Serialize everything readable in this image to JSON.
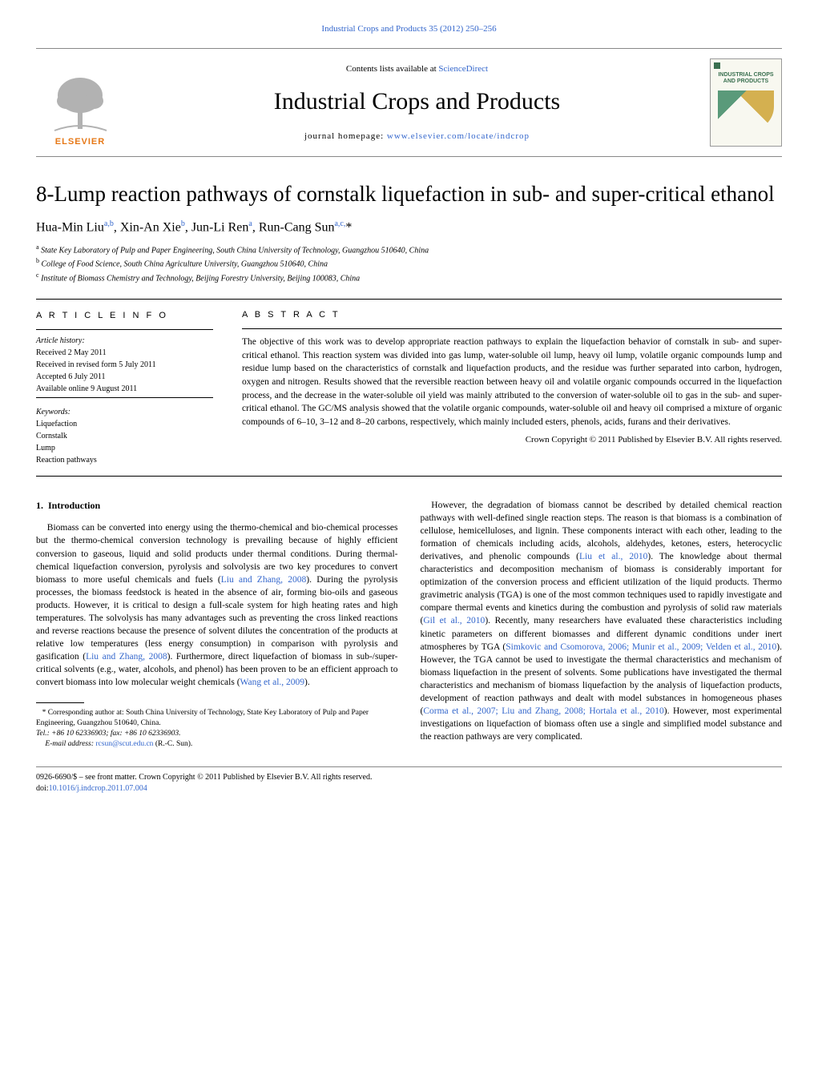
{
  "journal_ref": "Industrial Crops and Products 35 (2012) 250–256",
  "masthead": {
    "contents_text": "Contents lists available at ",
    "contents_link": "ScienceDirect",
    "journal_name": "Industrial Crops and Products",
    "homepage_label": "journal homepage: ",
    "homepage_url": "www.elsevier.com/locate/indcrop",
    "publisher": "ELSEVIER",
    "cover_title": "INDUSTRIAL CROPS AND PRODUCTS"
  },
  "article": {
    "title": "8-Lump reaction pathways of cornstalk liquefaction in sub- and super-critical ethanol",
    "authors_html": "Hua-Min Liu<sup>a,b</sup>, Xin-An Xie<sup>b</sup>, Jun-Li Ren<sup>a</sup>, Run-Cang Sun<sup>a,c,</sup>*",
    "affiliations": [
      {
        "tag": "a",
        "text": "State Key Laboratory of Pulp and Paper Engineering, South China University of Technology, Guangzhou 510640, China"
      },
      {
        "tag": "b",
        "text": "College of Food Science, South China Agriculture University, Guangzhou 510640, China"
      },
      {
        "tag": "c",
        "text": "Institute of Biomass Chemistry and Technology, Beijing Forestry University, Beijing 100083, China"
      }
    ]
  },
  "info": {
    "heading": "a r t i c l e   i n f o",
    "history_label": "Article history:",
    "history": [
      "Received 2 May 2011",
      "Received in revised form 5 July 2011",
      "Accepted 6 July 2011",
      "Available online 9 August 2011"
    ],
    "keywords_label": "Keywords:",
    "keywords": [
      "Liquefaction",
      "Cornstalk",
      "Lump",
      "Reaction pathways"
    ]
  },
  "abstract": {
    "heading": "a b s t r a c t",
    "text": "The objective of this work was to develop appropriate reaction pathways to explain the liquefaction behavior of cornstalk in sub- and super-critical ethanol. This reaction system was divided into gas lump, water-soluble oil lump, heavy oil lump, volatile organic compounds lump and residue lump based on the characteristics of cornstalk and liquefaction products, and the residue was further separated into carbon, hydrogen, oxygen and nitrogen. Results showed that the reversible reaction between heavy oil and volatile organic compounds occurred in the liquefaction process, and the decrease in the water-soluble oil yield was mainly attributed to the conversion of water-soluble oil to gas in the sub- and super-critical ethanol. The GC/MS analysis showed that the volatile organic compounds, water-soluble oil and heavy oil comprised a mixture of organic compounds of 6–10, 3–12 and 8–20 carbons, respectively, which mainly included esters, phenols, acids, furans and their derivatives.",
    "copyright": "Crown Copyright © 2011 Published by Elsevier B.V. All rights reserved."
  },
  "body": {
    "section_number": "1.",
    "section_title": "Introduction",
    "left_col": "Biomass can be converted into energy using the thermo-chemical and bio-chemical processes but the thermo-chemical conversion technology is prevailing because of highly efficient conversion to gaseous, liquid and solid products under thermal conditions. During thermal-chemical liquefaction conversion, pyrolysis and solvolysis are two key procedures to convert biomass to more useful chemicals and fuels (<a>Liu and Zhang, 2008</a>). During the pyrolysis processes, the biomass feedstock is heated in the absence of air, forming bio-oils and gaseous products. However, it is critical to design a full-scale system for high heating rates and high temperatures. The solvolysis has many advantages such as preventing the cross linked reactions and reverse reactions because the presence of solvent dilutes the concentration of the products at relative low temperatures (less energy consumption) in comparison with pyrolysis and gasification (<a>Liu and Zhang, 2008</a>). Furthermore, direct liquefaction of biomass in sub-/super-critical solvents (e.g., water, alcohols, and phenol) has been proven to be an efficient approach to convert biomass into low molecular weight chemicals (<a>Wang et al., 2009</a>).",
    "right_col": "However, the degradation of biomass cannot be described by detailed chemical reaction pathways with well-defined single reaction steps. The reason is that biomass is a combination of cellulose, hemicelluloses, and lignin. These components interact with each other, leading to the formation of chemicals including acids, alcohols, aldehydes, ketones, esters, heterocyclic derivatives, and phenolic compounds (<a>Liu et al., 2010</a>). The knowledge about thermal characteristics and decomposition mechanism of biomass is considerably important for optimization of the conversion process and efficient utilization of the liquid products. Thermo gravimetric analysis (TGA) is one of the most common techniques used to rapidly investigate and compare thermal events and kinetics during the combustion and pyrolysis of solid raw materials (<a>Gil et al., 2010</a>). Recently, many researchers have evaluated these characteristics including kinetic parameters on different biomasses and different dynamic conditions under inert atmospheres by TGA (<a>Simkovic and Csomorova, 2006; Munir et al., 2009; Velden et al., 2010</a>). However, the TGA cannot be used to investigate the thermal characteristics and mechanism of biomass liquefaction in the present of solvents. Some publications have investigated the thermal characteristics and mechanism of biomass liquefaction by the analysis of liquefaction products, development of reaction pathways and dealt with model substances in homogeneous phases (<a>Corma et al., 2007; Liu and Zhang, 2008; Hortala et al., 2010</a>). However, most experimental investigations on liquefaction of biomass often use a single and simplified model substance and the reaction pathways are very complicated."
  },
  "footnotes": {
    "corr": "* Corresponding author at: South China University of Technology, State Key Laboratory of Pulp and Paper Engineering, Guangzhou 510640, China.",
    "tel": "Tel.: +86 10 62336903; fax: +86 10 62336903.",
    "email_label": "E-mail address: ",
    "email": "rcsun@scut.edu.cn",
    "email_who": " (R.-C. Sun)."
  },
  "footer": {
    "issn_line": "0926-6690/$ – see front matter. Crown Copyright © 2011 Published by Elsevier B.V. All rights reserved.",
    "doi_label": "doi:",
    "doi": "10.1016/j.indcrop.2011.07.004"
  },
  "colors": {
    "link": "#3366cc",
    "elsevier_orange": "#e67817",
    "cover_green": "#3a7050"
  }
}
